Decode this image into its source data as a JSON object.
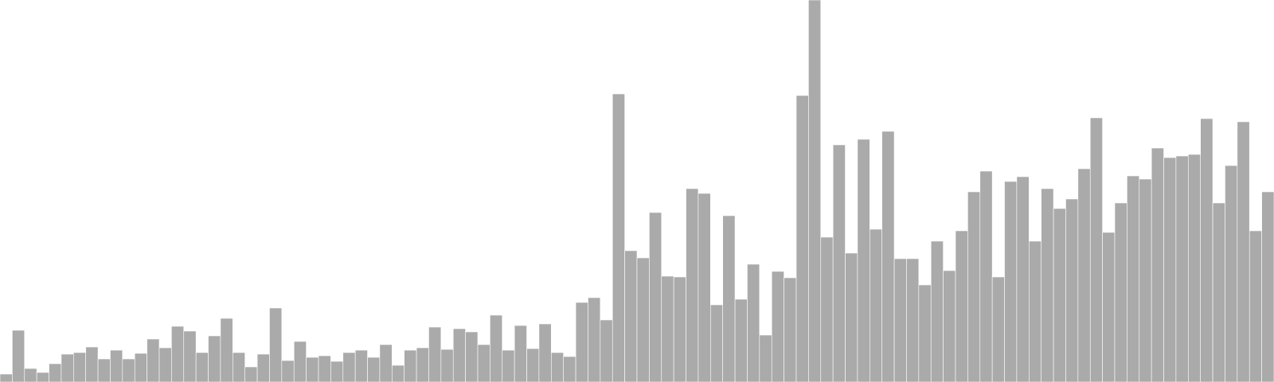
{
  "chart_data": {
    "type": "bar",
    "title": "",
    "xlabel": "",
    "ylabel": "",
    "bar_color": "#aaaaaa",
    "bar_edge_color": "#ffffff",
    "background_color": "#ffffff",
    "grid": false,
    "legend": "none",
    "ylim": [
      0,
      480
    ],
    "values": [
      10,
      65,
      17,
      12,
      23,
      35,
      37,
      44,
      29,
      40,
      29,
      36,
      54,
      43,
      70,
      64,
      37,
      58,
      80,
      37,
      19,
      35,
      93,
      27,
      51,
      31,
      33,
      26,
      37,
      40,
      31,
      47,
      21,
      40,
      43,
      69,
      41,
      67,
      63,
      47,
      84,
      40,
      71,
      42,
      73,
      37,
      32,
      100,
      106,
      78,
      362,
      165,
      156,
      213,
      133,
      132,
      243,
      237,
      97,
      209,
      104,
      148,
      59,
      139,
      131,
      360,
      480,
      182,
      298,
      162,
      305,
      192,
      315,
      155,
      155,
      122,
      177,
      140,
      190,
      239,
      265,
      132,
      252,
      258,
      177,
      243,
      218,
      230,
      268,
      332,
      188,
      225,
      259,
      255,
      294,
      282,
      284,
      286,
      331,
      225,
      272,
      327,
      190,
      239
    ]
  }
}
